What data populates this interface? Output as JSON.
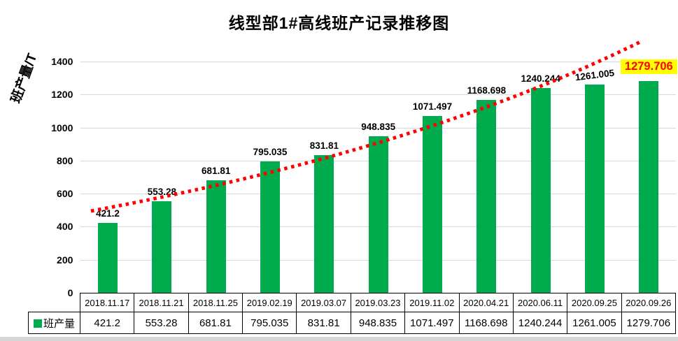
{
  "chart": {
    "title": "线型部1#高线班产记录推移图",
    "y_axis_title": "班产量/T",
    "legend_label": "班产量"
  },
  "chart_data": {
    "type": "bar",
    "title": "线型部1#高线班产记录推移图",
    "ylabel": "班产量/T",
    "xlabel": "",
    "categories": [
      "2018.11.17",
      "2018.11.21",
      "2018.11.25",
      "2019.02.19",
      "2019.03.07",
      "2019.03.23",
      "2019.11.02",
      "2020.04.21",
      "2020.06.11",
      "2020.09.25",
      "2020.09.26"
    ],
    "series": [
      {
        "name": "班产量",
        "values": [
          421.2,
          553.28,
          681.81,
          795.035,
          831.81,
          948.835,
          1071.497,
          1168.698,
          1240.244,
          1261.005,
          1279.706
        ]
      }
    ],
    "data_labels": [
      "421.2",
      "553.28",
      "681.81",
      "795.035",
      "831.81",
      "948.835",
      "1071.497",
      "1168.698",
      "1240.244",
      "1261.005",
      "1279.706"
    ],
    "ylim": [
      0,
      1400
    ],
    "y_ticks": [
      0,
      200,
      400,
      600,
      800,
      1000,
      1200,
      1400
    ],
    "grid": true,
    "legend_position": "bottom-left-table",
    "trendline": {
      "type": "dotted",
      "shape": "upward-curve"
    },
    "highlight_last_label": true
  },
  "colors": {
    "bar": "#00AB4E",
    "trend": "#FF0000",
    "highlight_bg": "#FFFF00",
    "highlight_text": "#FF0000",
    "gridline": "#D9D9D9",
    "table_border": "#000000"
  }
}
